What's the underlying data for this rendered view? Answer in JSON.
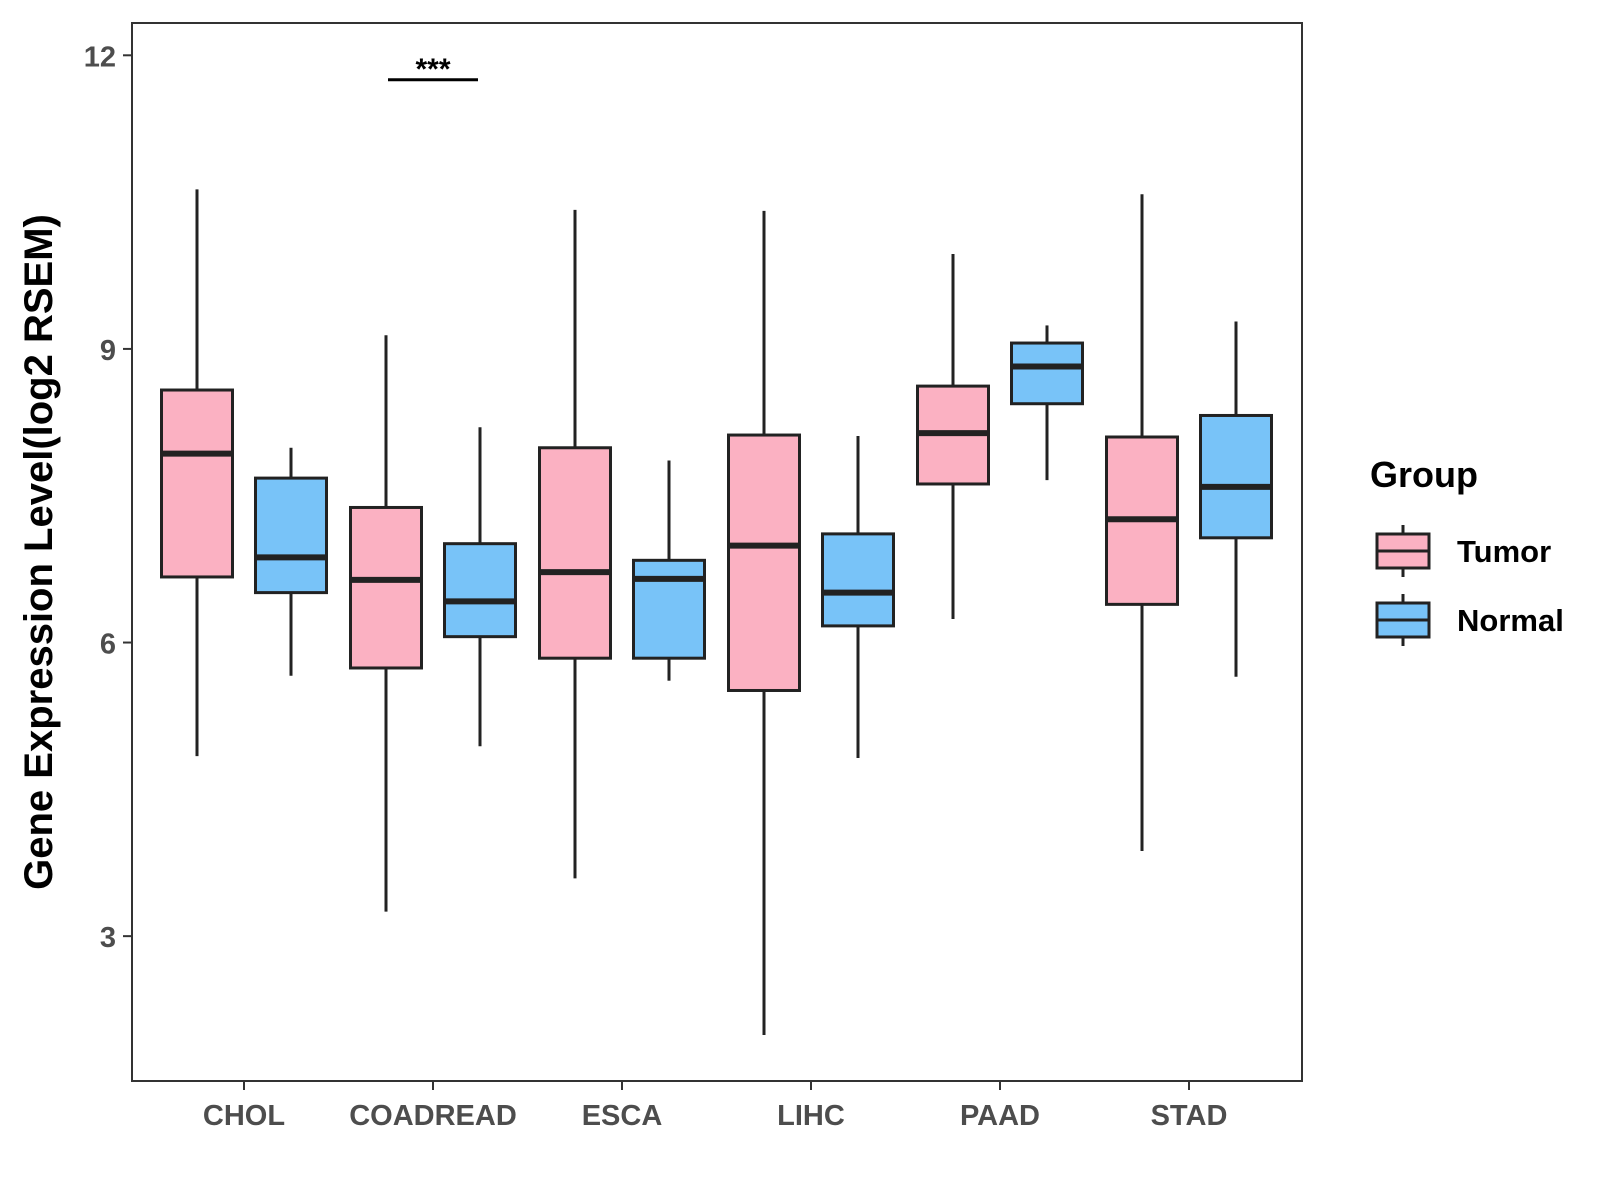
{
  "chart_data": {
    "type": "boxplot",
    "title": "",
    "xlabel": "",
    "ylabel": "Gene Expression Level(log2 RSEM)",
    "ylim": [
      1.52,
      12.33
    ],
    "yticks": [
      3,
      6,
      9,
      12
    ],
    "categories": [
      "CHOL",
      "COADREAD",
      "ESCA",
      "LIHC",
      "PAAD",
      "STAD"
    ],
    "legend": {
      "title": "Group",
      "position": "right"
    },
    "series": [
      {
        "name": "Tumor",
        "color": "#FBB1C2",
        "boxes": [
          {
            "category": "CHOL",
            "min": 4.84,
            "q1": 6.67,
            "median": 7.93,
            "q3": 8.58,
            "max": 10.63
          },
          {
            "category": "COADREAD",
            "min": 3.25,
            "q1": 5.74,
            "median": 6.64,
            "q3": 7.38,
            "max": 9.14
          },
          {
            "category": "ESCA",
            "min": 3.59,
            "q1": 5.84,
            "median": 6.72,
            "q3": 7.99,
            "max": 10.42
          },
          {
            "category": "LIHC",
            "min": 1.99,
            "q1": 5.51,
            "median": 6.99,
            "q3": 8.12,
            "max": 10.41
          },
          {
            "category": "PAAD",
            "min": 6.24,
            "q1": 7.62,
            "median": 8.14,
            "q3": 8.62,
            "max": 9.97
          },
          {
            "category": "STAD",
            "min": 3.87,
            "q1": 6.39,
            "median": 7.26,
            "q3": 8.1,
            "max": 10.58
          }
        ]
      },
      {
        "name": "Normal",
        "color": "#78C3F8",
        "boxes": [
          {
            "category": "CHOL",
            "min": 5.66,
            "q1": 6.51,
            "median": 6.87,
            "q3": 7.68,
            "max": 7.99
          },
          {
            "category": "COADREAD",
            "min": 4.94,
            "q1": 6.06,
            "median": 6.42,
            "q3": 7.01,
            "max": 8.2
          },
          {
            "category": "ESCA",
            "min": 5.61,
            "q1": 5.84,
            "median": 6.65,
            "q3": 6.84,
            "max": 7.86
          },
          {
            "category": "LIHC",
            "min": 4.82,
            "q1": 6.17,
            "median": 6.51,
            "q3": 7.11,
            "max": 8.11
          },
          {
            "category": "PAAD",
            "min": 7.66,
            "q1": 8.44,
            "median": 8.82,
            "q3": 9.06,
            "max": 9.24
          },
          {
            "category": "STAD",
            "min": 5.65,
            "q1": 7.07,
            "median": 7.59,
            "q3": 8.32,
            "max": 9.28
          }
        ]
      }
    ],
    "annotations": [
      {
        "category": "COADREAD",
        "text": "***",
        "y": 11.75
      }
    ]
  }
}
